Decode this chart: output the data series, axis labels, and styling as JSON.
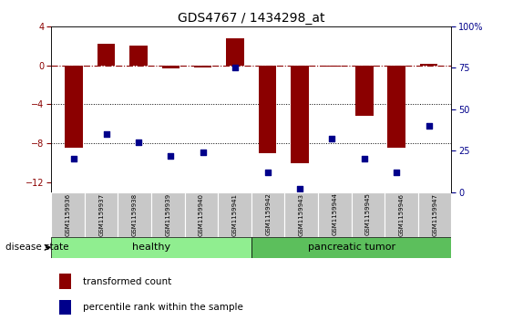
{
  "title": "GDS4767 / 1434298_at",
  "samples": [
    "GSM1159936",
    "GSM1159937",
    "GSM1159938",
    "GSM1159939",
    "GSM1159940",
    "GSM1159941",
    "GSM1159942",
    "GSM1159943",
    "GSM1159944",
    "GSM1159945",
    "GSM1159946",
    "GSM1159947"
  ],
  "transformed_count": [
    -8.5,
    2.2,
    2.0,
    -0.3,
    -0.2,
    2.8,
    -9.0,
    -10.0,
    -0.1,
    -5.2,
    -8.5,
    0.2
  ],
  "percentile_rank": [
    20,
    35,
    30,
    22,
    24,
    75,
    12,
    2,
    32,
    20,
    12,
    40
  ],
  "groups": [
    "healthy",
    "healthy",
    "healthy",
    "healthy",
    "healthy",
    "healthy",
    "pancreatic tumor",
    "pancreatic tumor",
    "pancreatic tumor",
    "pancreatic tumor",
    "pancreatic tumor",
    "pancreatic tumor"
  ],
  "bar_color": "#8B0000",
  "dot_color": "#00008B",
  "healthy_color": "#90EE90",
  "tumor_color": "#5CBF5C",
  "ylim_left": [
    -13,
    4
  ],
  "ylim_right": [
    0,
    100
  ],
  "yticks_left": [
    4,
    0,
    -4,
    -8,
    -12
  ],
  "yticks_right": [
    100,
    75,
    50,
    25,
    0
  ],
  "dotted_lines": [
    -4,
    -8
  ],
  "bar_width": 0.55,
  "n_healthy": 6,
  "n_tumor": 6
}
